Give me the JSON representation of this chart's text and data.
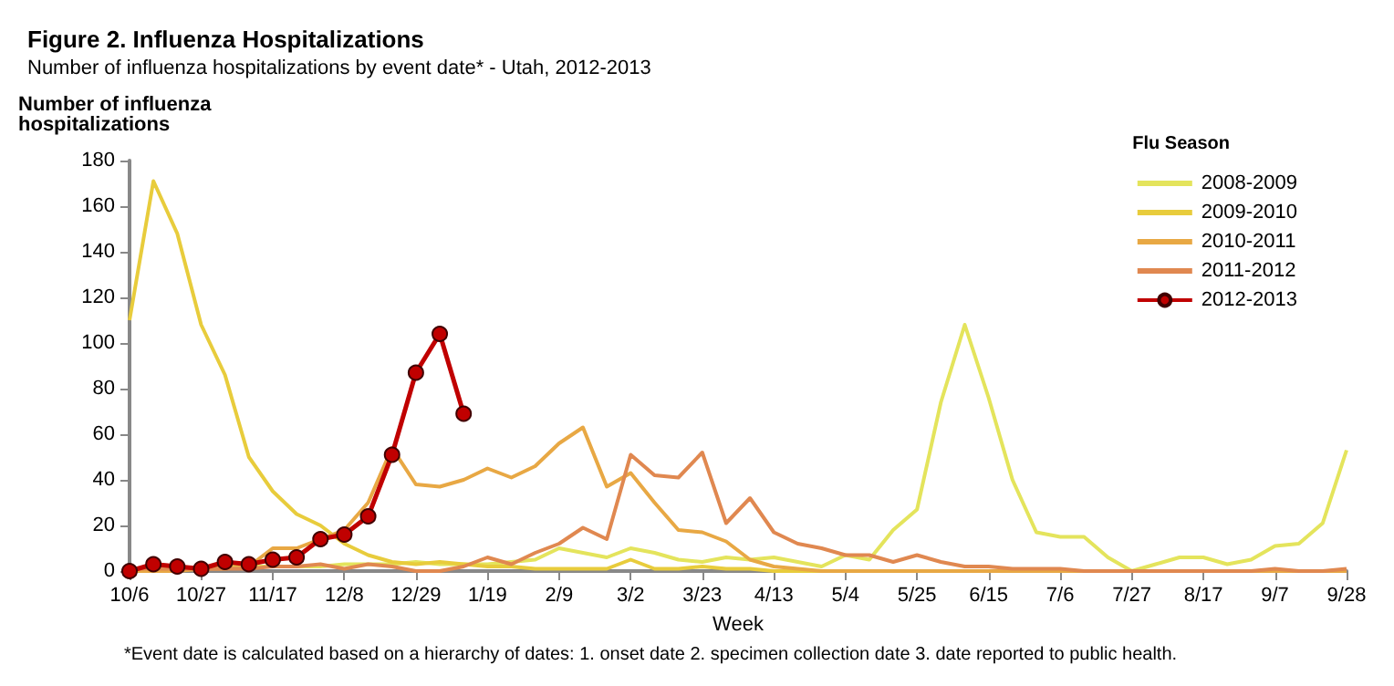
{
  "chart_data": {
    "type": "line",
    "title": "Figure 2. Influenza Hospitalizations",
    "subtitle": "Number of influenza hospitalizations by event date* - Utah, 2012-2013",
    "xlabel": "Week",
    "ylabel": "Number of influenza\nhospitalizations",
    "legend_title": "Flu Season",
    "legend": "top right",
    "grid": false,
    "categories": [
      "10/6",
      null,
      null,
      "10/27",
      null,
      null,
      "11/17",
      null,
      null,
      "12/8",
      null,
      null,
      "12/29",
      null,
      null,
      "1/19",
      null,
      null,
      "2/9",
      null,
      null,
      "3/2",
      null,
      null,
      "3/23",
      null,
      null,
      "4/13",
      null,
      null,
      "5/4",
      null,
      null,
      "5/25",
      null,
      null,
      "6/15",
      null,
      null,
      "7/6",
      null,
      null,
      "7/27",
      null,
      null,
      "8/17",
      null,
      null,
      "9/7",
      null,
      null,
      "9/28"
    ],
    "ylim": [
      0,
      180
    ],
    "yticks": [
      0,
      20,
      40,
      60,
      80,
      100,
      120,
      140,
      160,
      180
    ],
    "series": [
      {
        "name": "2008-2009",
        "color": "#e4e45c",
        "marker": "none",
        "values": [
          null,
          null,
          null,
          1,
          2,
          2,
          2,
          2,
          2,
          3,
          3,
          3,
          4,
          3,
          3,
          3,
          4,
          5,
          10,
          8,
          6,
          10,
          8,
          5,
          4,
          6,
          5,
          6,
          4,
          2,
          7,
          5,
          18,
          27,
          74,
          108,
          76,
          40,
          17,
          15,
          15,
          6,
          0,
          3,
          6,
          6,
          3,
          5,
          11,
          12,
          21,
          53
        ]
      },
      {
        "name": "2009-2010",
        "color": "#e8cc3c",
        "marker": "none",
        "values": [
          110,
          171,
          148,
          108,
          86,
          50,
          35,
          25,
          20,
          12,
          7,
          4,
          3,
          4,
          3,
          2,
          2,
          1,
          1,
          1,
          1,
          5,
          1,
          1,
          2,
          1,
          1,
          0,
          0,
          0,
          0,
          0,
          0,
          0,
          0,
          0,
          0,
          0,
          0,
          0,
          0,
          0,
          0,
          0,
          0,
          0,
          0,
          0,
          0,
          0,
          0,
          0
        ]
      },
      {
        "name": "2010-2011",
        "color": "#e8a844",
        "marker": "none",
        "values": [
          0,
          0,
          0,
          1,
          1,
          2,
          10,
          10,
          14,
          18,
          30,
          54,
          38,
          37,
          40,
          45,
          41,
          46,
          56,
          63,
          37,
          43,
          30,
          18,
          17,
          13,
          5,
          2,
          1,
          0,
          0,
          0,
          0,
          0,
          0,
          0,
          0,
          0,
          0,
          0,
          0,
          0,
          0,
          0,
          0,
          0,
          0,
          0,
          0,
          0,
          0,
          0
        ]
      },
      {
        "name": "2011-2012",
        "color": "#e08850",
        "marker": "none",
        "values": [
          1,
          1,
          1,
          1,
          1,
          1,
          2,
          2,
          3,
          1,
          3,
          2,
          0,
          0,
          2,
          6,
          3,
          8,
          12,
          19,
          14,
          51,
          42,
          41,
          52,
          21,
          32,
          17,
          12,
          10,
          7,
          7,
          4,
          7,
          4,
          2,
          2,
          1,
          1,
          1,
          0,
          0,
          0,
          0,
          0,
          0,
          0,
          0,
          1,
          0,
          0,
          1
        ]
      },
      {
        "name": "2012-2013",
        "color": "#c00000",
        "marker": "circle",
        "values": [
          0,
          3,
          2,
          1,
          4,
          3,
          5,
          6,
          14,
          16,
          24,
          51,
          87,
          104,
          69,
          null,
          null,
          null,
          null,
          null,
          null,
          null,
          null,
          null,
          null,
          null,
          null,
          null,
          null,
          null,
          null,
          null,
          null,
          null,
          null,
          null,
          null,
          null,
          null,
          null,
          null,
          null,
          null,
          null,
          null,
          null,
          null,
          null,
          null,
          null,
          null,
          null
        ]
      }
    ],
    "annotations": [
      "*Event date is calculated based on a hierarchy of dates: 1. onset date 2. specimen collection date 3. date reported to public health."
    ]
  }
}
